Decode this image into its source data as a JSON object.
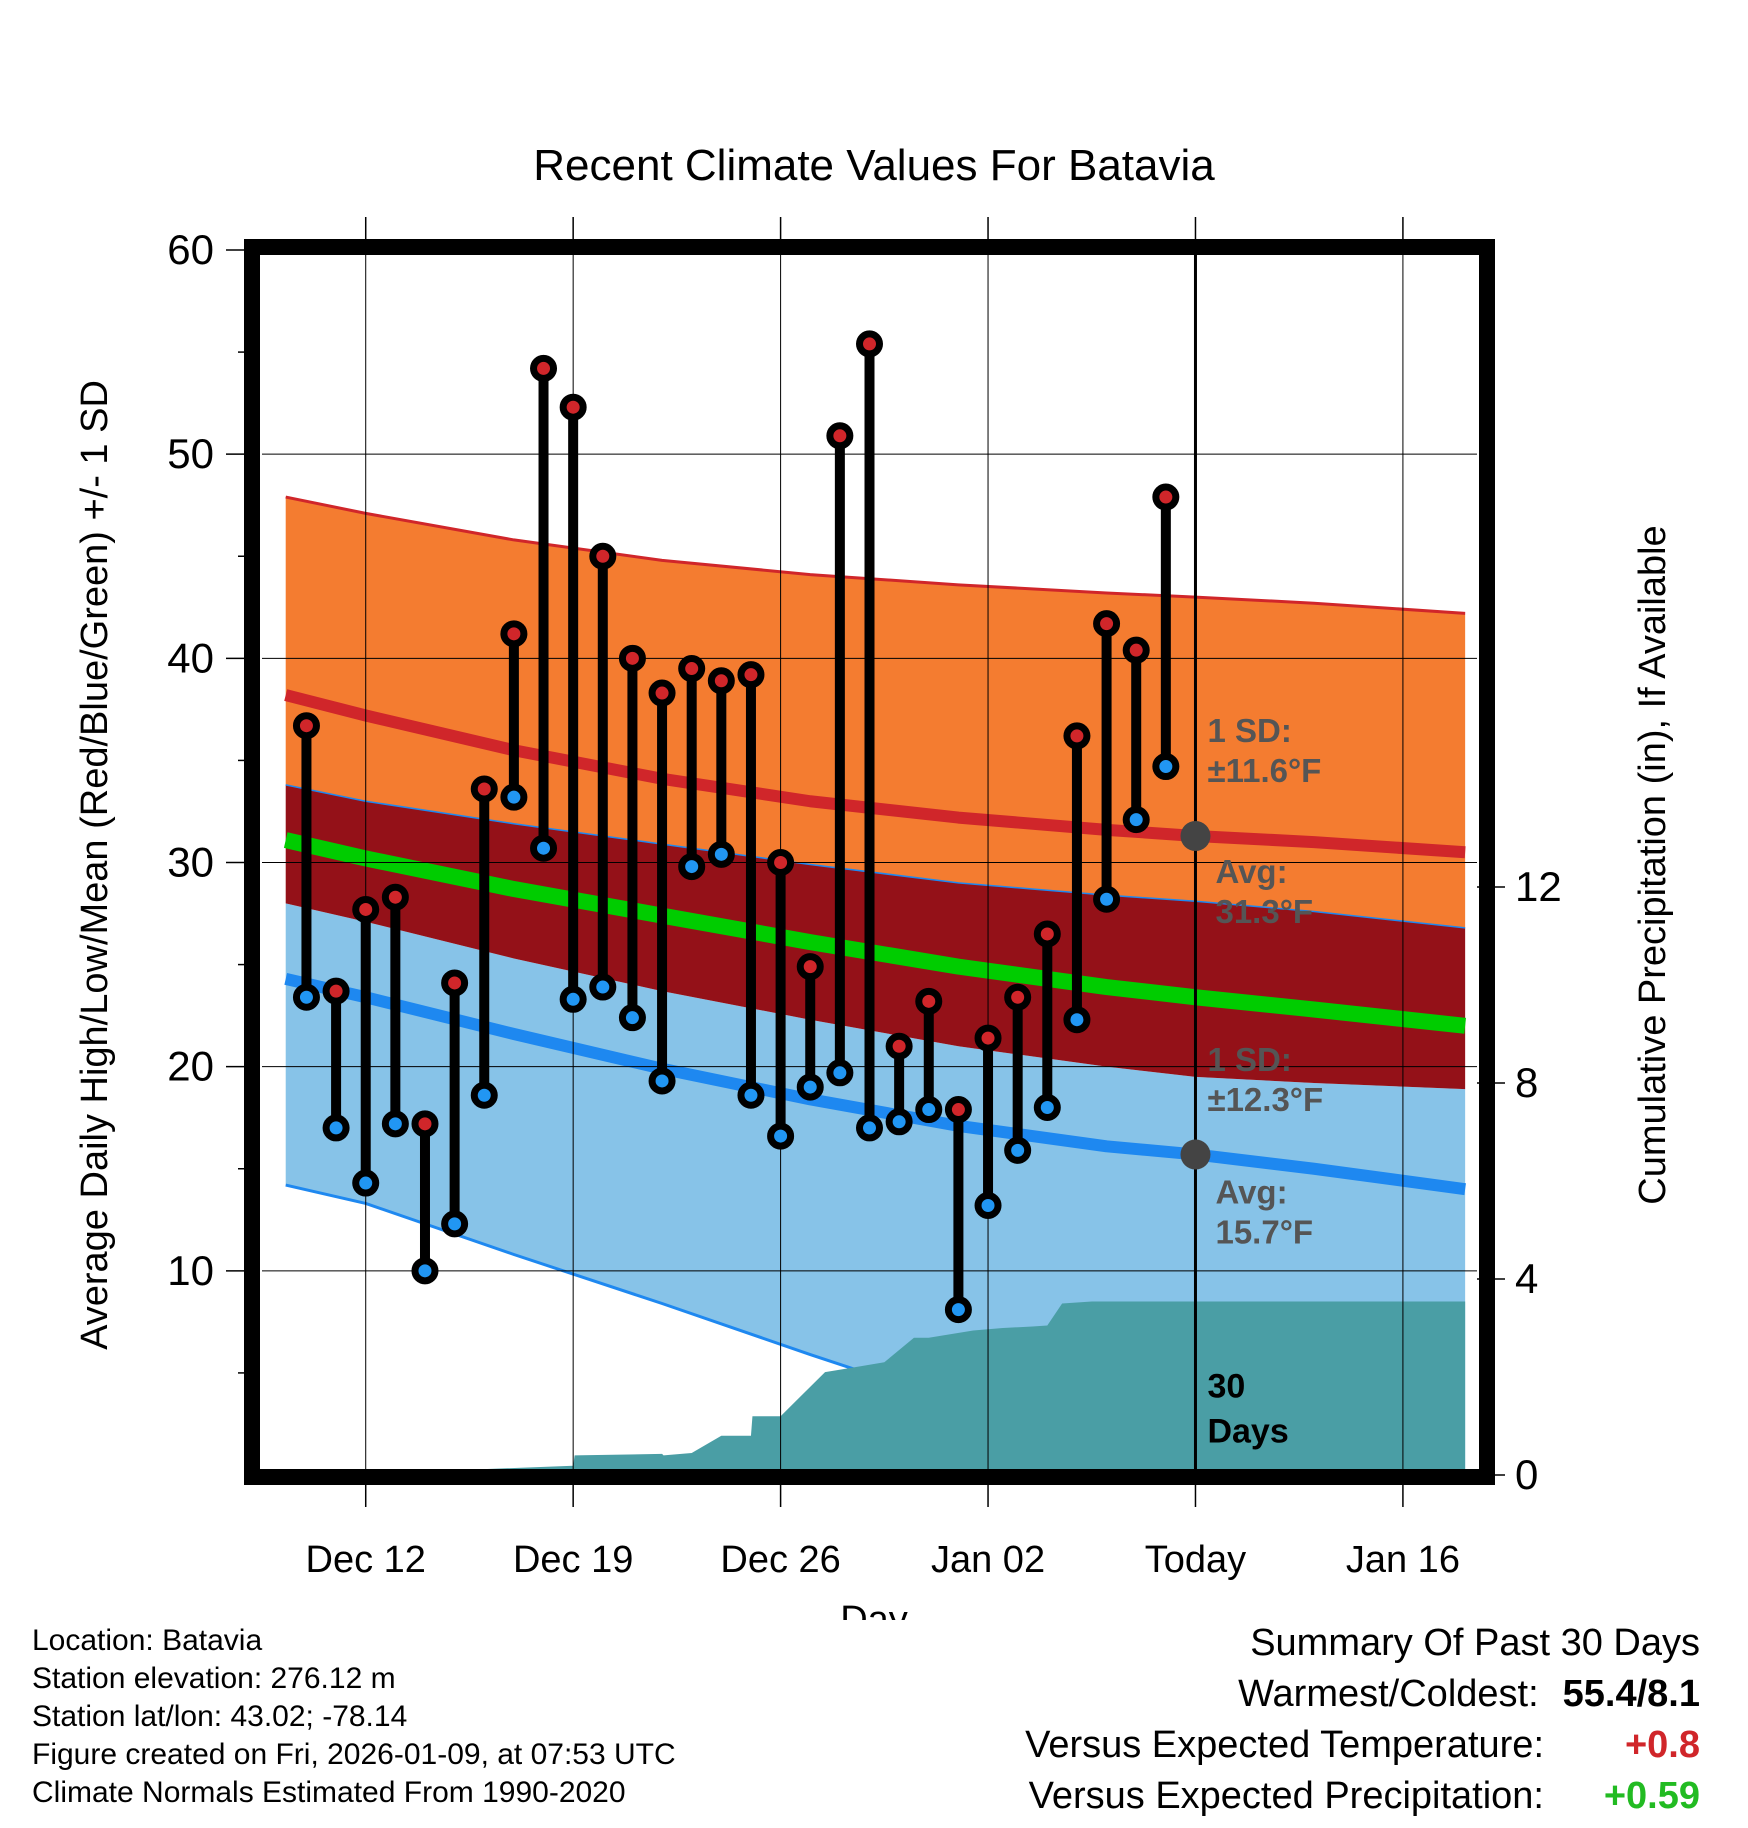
{
  "chart_data": {
    "type": "line",
    "title": "Recent Climate Values For Batavia",
    "xlabel": "Day",
    "ylabel": "Average Daily High/Low/Mean (Red/Blue/Green) +/- 1 SD",
    "ylabel_right": "Cumulative Precipitation (in), If Available",
    "ylim": [
      0,
      60
    ],
    "yticks": [
      10,
      20,
      30,
      40,
      50,
      60
    ],
    "ylim_right": [
      0,
      25
    ],
    "yticks_right": [
      0,
      4,
      8,
      12
    ],
    "xlim": [
      -3.5,
      37.5
    ],
    "xticks": [
      {
        "day": 0,
        "label": "Dec 12"
      },
      {
        "day": 7,
        "label": "Dec 19"
      },
      {
        "day": 14,
        "label": "Dec 26"
      },
      {
        "day": 21,
        "label": "Jan 02"
      },
      {
        "day": 28,
        "label": "Today"
      },
      {
        "day": 35,
        "label": "Jan 16"
      }
    ],
    "today_day": 28,
    "window_label": "30 Days",
    "normals_day": [
      -2.7,
      0,
      5,
      10,
      15,
      20,
      25,
      28,
      32,
      37.1
    ],
    "normal_high_upper": [
      47.9,
      47.1,
      45.8,
      44.8,
      44.1,
      43.6,
      43.2,
      43.0,
      42.7,
      42.2
    ],
    "normal_high": [
      38.2,
      37.2,
      35.5,
      34.1,
      33.0,
      32.2,
      31.6,
      31.3,
      31.0,
      30.5
    ],
    "normal_high_lower": [
      33.8,
      33.0,
      31.9,
      30.9,
      29.9,
      29.0,
      28.4,
      28.1,
      27.6,
      26.8
    ],
    "normal_mean_upper": [
      32.2,
      31.3,
      29.8,
      28.4,
      27.1,
      25.9,
      24.8,
      24.2,
      23.5,
      22.7
    ],
    "normal_mean": [
      31.1,
      30.2,
      28.7,
      27.4,
      26.1,
      24.9,
      23.9,
      23.4,
      22.8,
      22.0
    ],
    "normal_mean_lower": [
      30.0,
      29.1,
      27.6,
      26.3,
      25.1,
      24.0,
      23.0,
      22.5,
      21.8,
      21.0
    ],
    "normal_low_upper": [
      28.0,
      27.1,
      25.3,
      23.7,
      22.3,
      21.0,
      20.0,
      19.5,
      19.2,
      18.9
    ],
    "normal_low": [
      24.3,
      23.4,
      21.6,
      19.9,
      18.4,
      17.1,
      16.1,
      15.7,
      15.0,
      14.0
    ],
    "normal_low_lower": [
      14.2,
      13.3,
      10.8,
      8.4,
      5.9,
      3.5,
      1.1,
      0,
      0,
      0
    ],
    "daily_high": [
      36.7,
      23.7,
      27.7,
      28.3,
      17.2,
      24.1,
      33.6,
      41.2,
      54.2,
      52.3,
      45.0,
      40.0,
      38.3,
      39.5,
      38.9,
      39.2,
      30.0,
      24.9,
      50.9,
      55.4,
      21.0,
      23.2,
      17.9,
      21.4,
      23.4,
      26.5,
      36.2,
      41.7,
      40.4,
      47.9
    ],
    "daily_low": [
      23.4,
      17.0,
      14.3,
      17.2,
      10.0,
      12.3,
      18.6,
      33.2,
      30.7,
      23.3,
      23.9,
      22.4,
      19.3,
      29.8,
      30.4,
      18.6,
      16.6,
      19.0,
      19.7,
      17.0,
      17.3,
      17.9,
      8.1,
      13.2,
      15.9,
      18.0,
      22.3,
      28.2,
      32.1,
      34.7
    ],
    "daily_day_start": -2,
    "precip_days": [
      -2.7,
      -2,
      1,
      4,
      7,
      7.05,
      10,
      10.05,
      11,
      12,
      13,
      13.05,
      14,
      14.5,
      15.5,
      16.5,
      17.5,
      18.5,
      19,
      20.5,
      21.5,
      22.5,
      23,
      23.5,
      24.5,
      37.1
    ],
    "precip_cumulative": [
      0.0,
      0.06,
      0.07,
      0.12,
      0.19,
      0.4,
      0.43,
      0.4,
      0.45,
      0.8,
      0.8,
      1.2,
      1.2,
      1.5,
      2.1,
      2.2,
      2.3,
      2.8,
      2.8,
      2.95,
      3.0,
      3.03,
      3.05,
      3.5,
      3.54,
      3.54
    ],
    "annotations": {
      "high_sd": [
        "1 SD:",
        "±11.6°F"
      ],
      "high_avg": [
        "Avg:",
        "31.3°F"
      ],
      "low_sd": [
        "1 SD:",
        "±12.3°F"
      ],
      "low_avg": [
        "Avg:",
        "15.7°F"
      ]
    },
    "colors": {
      "high_band": "#f47c30",
      "high_line": "#d0262a",
      "mean_band": "#941118",
      "mean_line": "#00cc00",
      "low_band": "#87c3e8",
      "low_line": "#1e88f0",
      "precip": "#4a9ea5",
      "high_marker": "#d0262a",
      "low_marker": "#2196f3",
      "annotation": "#555555"
    }
  },
  "footer": {
    "location": "Location: Batavia",
    "elevation": "Station elevation: 276.12 m",
    "latlon": "Station lat/lon: 43.02; -78.14",
    "created": "Figure created on Fri, 2026-01-09, at 07:53 UTC",
    "normals": "Climate Normals Estimated From 1990-2020"
  },
  "summary": {
    "title": "Summary Of Past 30 Days",
    "warm_cold_label": "Warmest/Coldest:",
    "warm_cold_value": "55.4/8.1",
    "temp_label": "Versus Expected Temperature:",
    "temp_value": "+0.8",
    "temp_color": "#d0262a",
    "precip_label": "Versus Expected Precipitation:",
    "precip_value": "+0.59",
    "precip_color": "#22bb22"
  }
}
